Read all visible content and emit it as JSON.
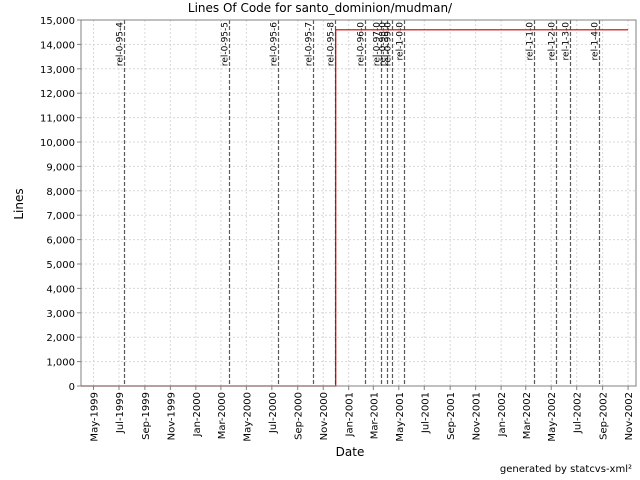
{
  "chart_data": {
    "type": "line",
    "title": "Lines Of Code for santo_dominion/mudman/",
    "xlabel": "Date",
    "ylabel": "Lines",
    "xlim": [
      "1999-04-01",
      "2002-11-20"
    ],
    "ylim": [
      0,
      15000
    ],
    "grid": true,
    "legend": "none",
    "x_tick_labels": [
      "May-1999",
      "Jul-1999",
      "Sep-1999",
      "Nov-1999",
      "Jan-2000",
      "Mar-2000",
      "May-2000",
      "Jul-2000",
      "Sep-2000",
      "Nov-2000",
      "Jan-2001",
      "Mar-2001",
      "May-2001",
      "Jul-2001",
      "Sep-2001",
      "Nov-2001",
      "Jan-2002",
      "Mar-2002",
      "May-2002",
      "Jul-2002",
      "Sep-2002",
      "Nov-2002"
    ],
    "x_ticks": [
      "1999-05-01",
      "1999-07-01",
      "1999-09-01",
      "1999-11-01",
      "2000-01-01",
      "2000-03-01",
      "2000-05-01",
      "2000-07-01",
      "2000-09-01",
      "2000-11-01",
      "2001-01-01",
      "2001-03-01",
      "2001-05-01",
      "2001-07-01",
      "2001-09-01",
      "2001-11-01",
      "2002-01-01",
      "2002-03-01",
      "2002-05-01",
      "2002-07-01",
      "2002-09-01",
      "2002-11-01"
    ],
    "y_tick_labels": [
      "0",
      "1,000",
      "2,000",
      "3,000",
      "4,000",
      "5,000",
      "6,000",
      "7,000",
      "8,000",
      "9,000",
      "10,000",
      "11,000",
      "12,000",
      "13,000",
      "14,000",
      "15,000"
    ],
    "y_ticks": [
      0,
      1000,
      2000,
      3000,
      4000,
      5000,
      6000,
      7000,
      8000,
      9000,
      10000,
      11000,
      12000,
      13000,
      14000,
      15000
    ],
    "series": [
      {
        "color": "#cc0000",
        "points": [
          [
            "1999-04-01",
            0
          ],
          [
            "2000-12-01",
            0
          ],
          [
            "2000-12-01",
            14600
          ],
          [
            "2002-11-01",
            14600
          ]
        ]
      }
    ],
    "tags": [
      {
        "label": "rel-0-95-4",
        "date": "1999-07-12"
      },
      {
        "label": "rel-0-95-5",
        "date": "2000-03-20"
      },
      {
        "label": "rel-0-95-6",
        "date": "2000-07-15"
      },
      {
        "label": "rel-0-95-7",
        "date": "2000-10-08"
      },
      {
        "label": "rel-0-95-8",
        "date": "2000-11-29"
      },
      {
        "label": "rel-0-96-0",
        "date": "2001-02-10"
      },
      {
        "label": "rel-0-97-0",
        "date": "2001-03-20"
      },
      {
        "label": "rel-0-98-0",
        "date": "2001-04-02"
      },
      {
        "label": "rel-0-99-0",
        "date": "2001-04-14"
      },
      {
        "label": "rel-1-0-0",
        "date": "2001-05-14"
      },
      {
        "label": "rel-1-1-0",
        "date": "2002-03-20"
      },
      {
        "label": "rel-1-2-0",
        "date": "2002-05-12"
      },
      {
        "label": "rel-1-3-0",
        "date": "2002-06-15"
      },
      {
        "label": "rel-1-4-0",
        "date": "2002-08-24"
      }
    ]
  },
  "footer": "generated by statcvs-xml²"
}
